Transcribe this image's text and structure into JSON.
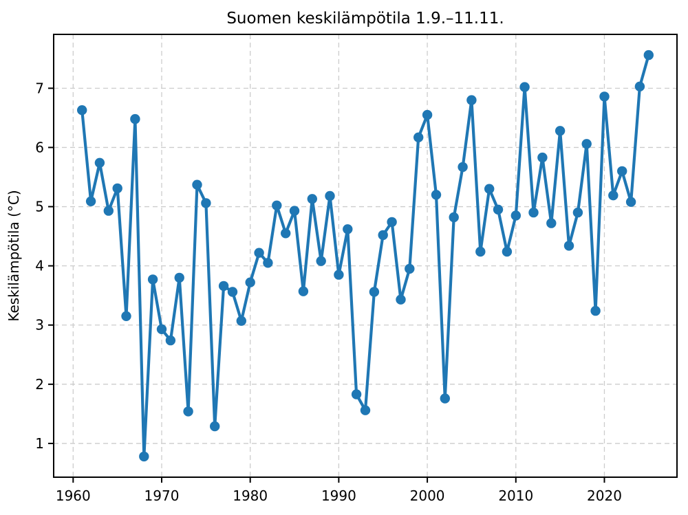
{
  "figure": {
    "background": "#ffffff",
    "border_color": "#000000"
  },
  "chart_data": {
    "type": "line",
    "title": "Suomen keskilämpötila 1.9.–11.11.",
    "xlabel": "",
    "ylabel": "Keskilämpötila (°C)",
    "legend": "none",
    "grid": "dashed",
    "grid_color": "#cccccc",
    "xlim": [
      1957.8,
      2028.2
    ],
    "ylim": [
      0.43,
      7.91
    ],
    "xticks": [
      1960,
      1970,
      1980,
      1990,
      2000,
      2010,
      2020
    ],
    "yticks": [
      1,
      2,
      3,
      4,
      5,
      6,
      7
    ],
    "series": [
      {
        "name": "Keskilämpötila (°C)",
        "color": "#1f77b4",
        "marker": "circle",
        "x": [
          1961,
          1962,
          1963,
          1964,
          1965,
          1966,
          1967,
          1968,
          1969,
          1970,
          1971,
          1972,
          1973,
          1974,
          1975,
          1976,
          1977,
          1978,
          1979,
          1980,
          1981,
          1982,
          1983,
          1984,
          1985,
          1986,
          1987,
          1988,
          1989,
          1990,
          1991,
          1992,
          1993,
          1994,
          1995,
          1996,
          1997,
          1998,
          1999,
          2000,
          2001,
          2002,
          2003,
          2004,
          2005,
          2006,
          2007,
          2008,
          2009,
          2010,
          2011,
          2012,
          2013,
          2014,
          2015,
          2016,
          2017,
          2018,
          2019,
          2020,
          2021,
          2022,
          2023,
          2024,
          2025
        ],
        "values": [
          6.63,
          5.09,
          5.74,
          4.93,
          5.31,
          3.15,
          6.48,
          0.78,
          3.77,
          2.93,
          2.74,
          3.8,
          1.54,
          5.37,
          5.06,
          1.29,
          3.66,
          3.56,
          3.07,
          3.72,
          4.22,
          4.05,
          5.02,
          4.55,
          4.93,
          3.57,
          5.13,
          4.08,
          5.18,
          3.85,
          4.62,
          1.83,
          1.56,
          3.56,
          4.52,
          4.74,
          3.43,
          3.95,
          6.17,
          6.55,
          5.2,
          1.76,
          4.82,
          5.67,
          6.8,
          4.24,
          5.3,
          4.95,
          4.24,
          4.85,
          7.02,
          4.9,
          5.83,
          4.72,
          6.28,
          4.34,
          4.9,
          6.06,
          3.24,
          6.86,
          5.19,
          5.6,
          5.08,
          7.03,
          7.56
        ]
      }
    ]
  }
}
